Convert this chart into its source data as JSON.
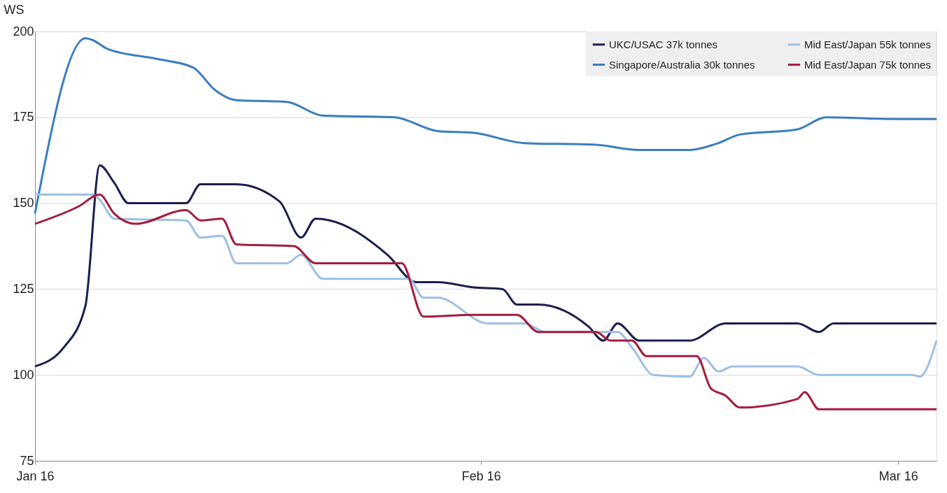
{
  "chart_data": {
    "type": "line",
    "ylabel": "WS",
    "xlim": [
      "2016-01-01",
      "2016-03-03T16:00"
    ],
    "xticks": [
      {
        "value": "2016-01-01",
        "label": "Jan 16"
      },
      {
        "value": "2016-02-01",
        "label": "Feb 16"
      },
      {
        "value": "2016-03-01",
        "label": "Mar 16"
      }
    ],
    "ylim": [
      75,
      200
    ],
    "yticks": [
      75,
      100,
      125,
      150,
      175,
      200
    ],
    "grid": "y",
    "legend": "top right",
    "marker": "none",
    "line_style": "solid",
    "series": [
      {
        "name": "UKC/USAC 37k tonnes",
        "color": "#1a1f4e",
        "x": [
          "2016-01-01",
          "2016-01-03",
          "2016-01-04T12:00",
          "2016-01-05T12:00",
          "2016-01-06T12:00",
          "2016-01-07T12:00",
          "2016-01-11T12:00",
          "2016-01-12T12:00",
          "2016-01-15",
          "2016-01-18",
          "2016-01-19T12:00",
          "2016-01-20T12:00",
          "2016-01-21T12:00",
          "2016-01-25T12:00",
          "2016-01-27T12:00",
          "2016-01-29",
          "2016-01-31T12:00",
          "2016-02-02T12:00",
          "2016-02-03T12:00",
          "2016-02-05",
          "2016-02-08T12:00",
          "2016-02-09T12:00",
          "2016-02-10T12:00",
          "2016-02-12",
          "2016-02-15T12:00",
          "2016-02-18",
          "2016-02-23",
          "2016-02-24T12:00",
          "2016-02-25T12:00",
          "2016-03-03T16:00"
        ],
        "values": [
          102.5,
          108,
          120,
          161,
          156,
          150,
          150,
          155.5,
          155.5,
          150.5,
          140,
          145.5,
          145,
          135,
          127,
          127,
          125.5,
          125,
          120.5,
          120.5,
          114,
          110,
          115,
          110,
          110,
          115,
          115,
          112.5,
          115,
          115
        ]
      },
      {
        "name": "Singapore/Australia 30k tonnes",
        "color": "#3a7ebf",
        "x": [
          "2016-01-01",
          "2016-01-04T12:00",
          "2016-01-05",
          "2016-01-06",
          "2016-01-09T12:00",
          "2016-01-12",
          "2016-01-13T12:00",
          "2016-01-15",
          "2016-01-18T12:00",
          "2016-01-21",
          "2016-01-26",
          "2016-01-29",
          "2016-01-31T12:00",
          "2016-02-04",
          "2016-02-09",
          "2016-02-12",
          "2016-02-15T12:00",
          "2016-02-17T12:00",
          "2016-02-19",
          "2016-02-23",
          "2016-02-25",
          "2016-03-01",
          "2016-03-03T16:00"
        ],
        "values": [
          147,
          198,
          197.5,
          195,
          192,
          189.5,
          183,
          180,
          179.5,
          175.5,
          175,
          171,
          170.5,
          167.5,
          167,
          165.5,
          165.5,
          167.5,
          170,
          171.5,
          175,
          174.5,
          174.5
        ]
      },
      {
        "name": "Mid East/Japan 55k tonnes",
        "color": "#9dbfe3",
        "x": [
          "2016-01-01",
          "2016-01-05",
          "2016-01-05T12:00",
          "2016-01-06T12:00",
          "2016-01-11T12:00",
          "2016-01-12T12:00",
          "2016-01-14",
          "2016-01-15",
          "2016-01-18T12:00",
          "2016-01-19T12:00",
          "2016-01-21",
          "2016-01-27",
          "2016-01-28",
          "2016-01-29",
          "2016-02-01T12:00",
          "2016-02-04",
          "2016-02-05T12:00",
          "2016-02-10T12:00",
          "2016-02-11T12:00",
          "2016-02-13",
          "2016-02-15T12:00",
          "2016-02-16T12:00",
          "2016-02-17T12:00",
          "2016-02-18T12:00",
          "2016-02-23",
          "2016-02-24T12:00",
          "2016-03-02",
          "2016-03-02T12:00",
          "2016-03-03T16:00"
        ],
        "values": [
          152.5,
          152.5,
          151,
          145.5,
          145,
          140,
          140.5,
          132.5,
          132.5,
          135,
          128,
          128,
          122.5,
          122.5,
          115,
          115,
          112.5,
          112.5,
          108,
          100,
          99.5,
          105,
          101,
          102.5,
          102.5,
          100,
          100,
          99.5,
          110
        ]
      },
      {
        "name": "Mid East/Japan 75k tonnes",
        "color": "#a51c3c",
        "x": [
          "2016-01-01",
          "2016-01-04",
          "2016-01-05T12:00",
          "2016-01-06T12:00",
          "2016-01-08",
          "2016-01-11T12:00",
          "2016-01-12T12:00",
          "2016-01-14",
          "2016-01-15",
          "2016-01-19",
          "2016-01-20T12:00",
          "2016-01-26T12:00",
          "2016-01-28",
          "2016-01-31T12:00",
          "2016-02-03T12:00",
          "2016-02-05",
          "2016-02-09",
          "2016-02-10",
          "2016-02-11T12:00",
          "2016-02-12T12:00",
          "2016-02-16",
          "2016-02-17",
          "2016-02-18",
          "2016-02-19",
          "2016-02-23",
          "2016-02-23T12:00",
          "2016-02-24T12:00",
          "2016-03-03T16:00"
        ],
        "values": [
          144,
          149,
          152.5,
          147,
          144,
          148,
          145,
          145.5,
          138,
          137.5,
          132.5,
          132.5,
          117,
          117.5,
          117.5,
          112.5,
          112.5,
          110,
          110,
          105.5,
          105.5,
          96,
          94,
          90.5,
          93,
          95,
          90,
          90
        ]
      }
    ]
  }
}
